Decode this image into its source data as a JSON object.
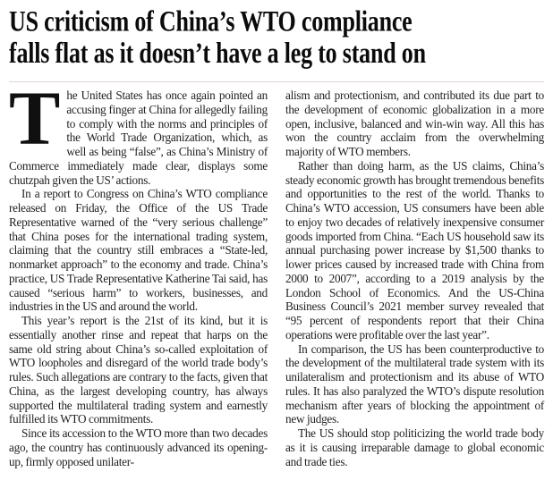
{
  "page": {
    "background_color": "#ffffff",
    "headline_color": "#0b0b0b",
    "body_text_color": "#1e1e1e",
    "divider_color": "#ded5d2"
  },
  "article": {
    "headline_lines": [
      "US criticism of China’s WTO compliance",
      "falls flat as it doesn’t have a leg to stand on"
    ],
    "drop_cap": "T",
    "left_column": [
      "he United States has once again pointed an accusing finger at China for allegedly failing to comply with the norms and principles of the World Trade Organization, which, as well as being “false”, as China’s Ministry of Commerce immediately made clear, displays some chutzpah given the US’ actions.",
      "In a report to Congress on China’s WTO compliance released on Friday, the Office of the US Trade Representative warned of the “very serious challenge” that China poses for the international trading system, claiming that the country still embraces a “State-led, nonmarket approach” to the economy and trade. China’s practice, US Trade Representative Katherine Tai said, has caused “serious harm” to workers, businesses, and industries in the US and around the world.",
      "This year’s report is the 21st of its kind, but it is essentially another rinse and repeat that harps on the same old string about China’s so-called exploitation of WTO loopholes and disregard of the world trade body’s rules. Such allegations are contrary to the facts, given that China, as the largest developing country, has always supported the multilateral trading system and earnestly fulfilled its WTO commitments.",
      "Since its accession to the WTO more than two decades ago, the country has continuously advanced its opening-up, firmly opposed unilater-"
    ],
    "right_column": [
      "alism and protectionism, and contributed its due part to the development of economic globalization in a more open, inclusive, balanced and win-win way. All this has won the country acclaim from the overwhelming majority of WTO members.",
      "Rather than doing harm, as the US claims, China’s steady economic growth has brought tremendous benefits and opportunities to the rest of the world. Thanks to China’s WTO accession, US consumers have been able to enjoy two decades of relatively inexpensive consumer goods imported from China. “Each US household saw its annual purchasing power increase by $1,500 thanks to lower prices caused by increased trade with China from 2000 to 2007”, according to a 2019 analysis by the London School of Economics. And the US-China Business Council’s 2021 member survey revealed that “95 percent of respondents report that their China operations were profitable over the last year”.",
      "In comparison, the US has been counterproductive to the development of the multilateral trade system with its unilateralism and protectionism and its abuse of WTO rules. It has also paralyzed the WTO’s dispute resolution mechanism after years of blocking the appointment of new judges.",
      "The US should stop politicizing the world trade body as it is causing irreparable damage to global economic and trade ties."
    ]
  }
}
